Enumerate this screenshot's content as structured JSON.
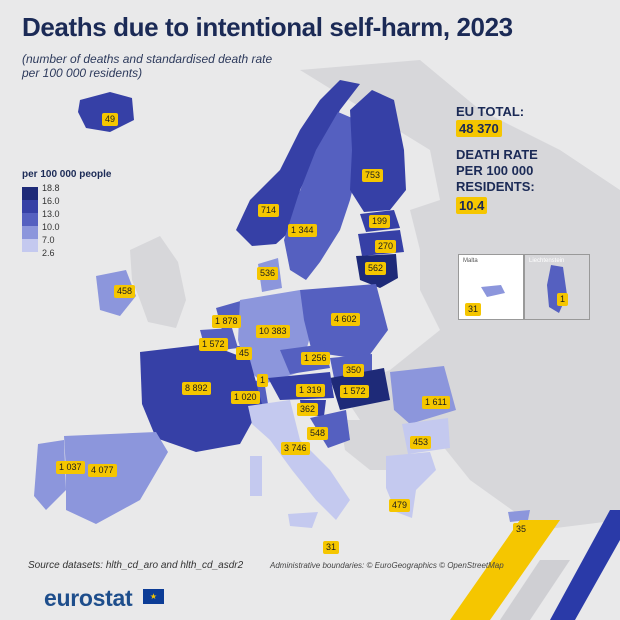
{
  "title": "Deaths due to intentional self-harm, 2023",
  "subtitle": "(number of deaths and standardised death rate per 100 000 residents)",
  "legend": {
    "title": "per 100 000 people",
    "ticks": [
      "18.8",
      "16.0",
      "13.0",
      "10.0",
      "7.0",
      "2.6"
    ],
    "colors": [
      "#1e2a78",
      "#3640a6",
      "#5560c0",
      "#8c96dc",
      "#c4c9ef"
    ]
  },
  "eu_total": {
    "label": "EU TOTAL:",
    "value": "48 370"
  },
  "death_rate": {
    "label_line1": "DEATH RATE",
    "label_line2": "PER 100 000",
    "label_line3": "RESIDENTS:",
    "value": "10.4"
  },
  "insets": {
    "malta": {
      "title": "Malta",
      "value": "31"
    },
    "liechtenstein": {
      "title": "Liechtenstein",
      "value": "1"
    }
  },
  "countries": [
    {
      "name": "Iceland",
      "value": "49"
    },
    {
      "name": "Norway",
      "value": "714"
    },
    {
      "name": "Sweden",
      "value": "1 344"
    },
    {
      "name": "Finland",
      "value": "753"
    },
    {
      "name": "Estonia",
      "value": "199"
    },
    {
      "name": "Latvia",
      "value": "270"
    },
    {
      "name": "Lithuania",
      "value": "562"
    },
    {
      "name": "Denmark",
      "value": "536"
    },
    {
      "name": "Ireland",
      "value": "458"
    },
    {
      "name": "Netherlands",
      "value": "1 878"
    },
    {
      "name": "Belgium",
      "value": "1 572"
    },
    {
      "name": "Luxembourg",
      "value": "45"
    },
    {
      "name": "Germany",
      "value": "10 383"
    },
    {
      "name": "Poland",
      "value": "4 602"
    },
    {
      "name": "Czechia",
      "value": "1 256"
    },
    {
      "name": "Slovakia",
      "value": "350"
    },
    {
      "name": "Hungary",
      "value": "1 572"
    },
    {
      "name": "Austria",
      "value": "1 319"
    },
    {
      "name": "Slovenia",
      "value": "362"
    },
    {
      "name": "Croatia",
      "value": "548"
    },
    {
      "name": "Switzerland",
      "value": "1 020"
    },
    {
      "name": "Liechtenstein-map",
      "value": "1"
    },
    {
      "name": "France",
      "value": "8 892"
    },
    {
      "name": "Romania",
      "value": "1 611"
    },
    {
      "name": "Bulgaria",
      "value": "453"
    },
    {
      "name": "Italy",
      "value": "3 746"
    },
    {
      "name": "Portugal",
      "value": "1 037"
    },
    {
      "name": "Spain",
      "value": "4 077"
    },
    {
      "name": "Greece",
      "value": "479"
    },
    {
      "name": "Cyprus",
      "value": "35"
    },
    {
      "name": "Malta-map",
      "value": "31"
    }
  ],
  "source": "Source datasets: hlth_cd_aro and hlth_cd_asdr2",
  "admin_boundaries": "Administrative boundaries: © EuroGeographics © OpenStreetMap",
  "logo": "eurostat"
}
